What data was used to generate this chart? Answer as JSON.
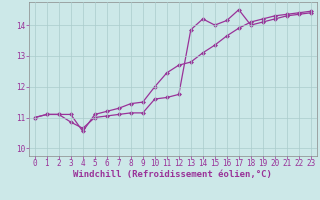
{
  "line1_x": [
    0,
    1,
    2,
    3,
    4,
    5,
    6,
    7,
    8,
    9,
    10,
    11,
    12,
    13,
    14,
    15,
    16,
    17,
    18,
    19,
    20,
    21,
    22,
    23
  ],
  "line1_y": [
    11.0,
    11.1,
    11.1,
    10.85,
    10.65,
    11.0,
    11.05,
    11.1,
    11.15,
    11.15,
    11.6,
    11.65,
    11.75,
    13.85,
    14.2,
    14.0,
    14.15,
    14.5,
    14.0,
    14.1,
    14.2,
    14.3,
    14.35,
    14.4
  ],
  "line2_x": [
    0,
    1,
    2,
    3,
    4,
    5,
    6,
    7,
    8,
    9,
    10,
    11,
    12,
    13,
    14,
    15,
    16,
    17,
    18,
    19,
    20,
    21,
    22,
    23
  ],
  "line2_y": [
    11.0,
    11.1,
    11.1,
    11.1,
    10.55,
    11.1,
    11.2,
    11.3,
    11.45,
    11.5,
    12.0,
    12.45,
    12.7,
    12.8,
    13.1,
    13.35,
    13.65,
    13.9,
    14.1,
    14.2,
    14.3,
    14.35,
    14.4,
    14.45
  ],
  "line_color": "#993399",
  "bg_color": "#cce8e8",
  "grid_color": "#aacccc",
  "xlabel": "Windchill (Refroidissement éolien,°C)",
  "xlim": [
    -0.5,
    23.5
  ],
  "ylim": [
    9.75,
    14.75
  ],
  "xticks": [
    0,
    1,
    2,
    3,
    4,
    5,
    6,
    7,
    8,
    9,
    10,
    11,
    12,
    13,
    14,
    15,
    16,
    17,
    18,
    19,
    20,
    21,
    22,
    23
  ],
  "yticks": [
    10,
    11,
    12,
    13,
    14
  ],
  "marker": "D",
  "markersize": 2,
  "linewidth": 0.9,
  "xlabel_fontsize": 6.5,
  "tick_fontsize": 5.5
}
